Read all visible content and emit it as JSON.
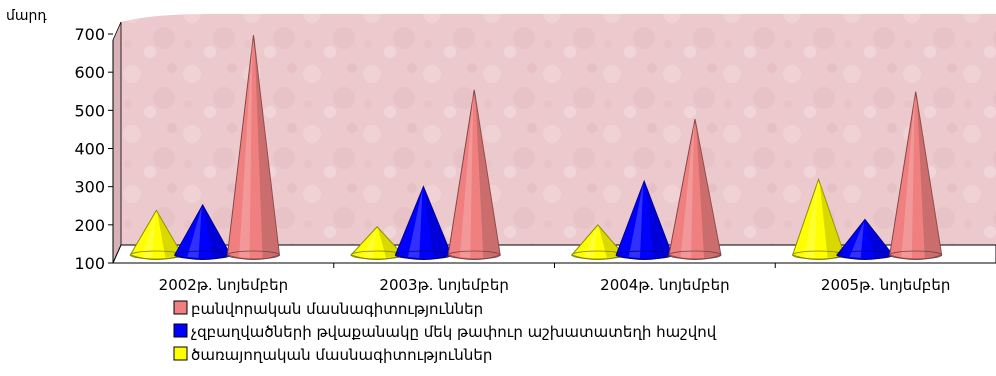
{
  "chart_data": {
    "type": "bar",
    "style": "3d-cone",
    "ylabel": "մարդ",
    "ylim": [
      100,
      700
    ],
    "yticks": [
      100,
      200,
      300,
      400,
      500,
      600,
      700
    ],
    "categories": [
      "2002թ. նոյեմբեր",
      "2003թ. նոյեմբեր",
      "2004թ. նոյեմբեր",
      "2005թ. նոյեմբեր"
    ],
    "series": [
      {
        "name": "ծառայողական մասնագիտություններ",
        "color": "#ffff00",
        "values": [
          195,
          150,
          155,
          280
        ]
      },
      {
        "name": "չզբաղվածների թվաքանակը մեկ թափուր աշխատատեղի հաշվով",
        "color": "#0000ff",
        "values": [
          210,
          260,
          275,
          170
        ]
      },
      {
        "name": "բանվորական մասնագիտություններ",
        "color": "#f08080",
        "values": [
          675,
          525,
          445,
          520
        ]
      }
    ],
    "legend_order": [
      2,
      1,
      0
    ],
    "legend_position": "bottom",
    "wall_color": "#ecc9cc",
    "floor_color": "#ffffff",
    "grid": false
  }
}
